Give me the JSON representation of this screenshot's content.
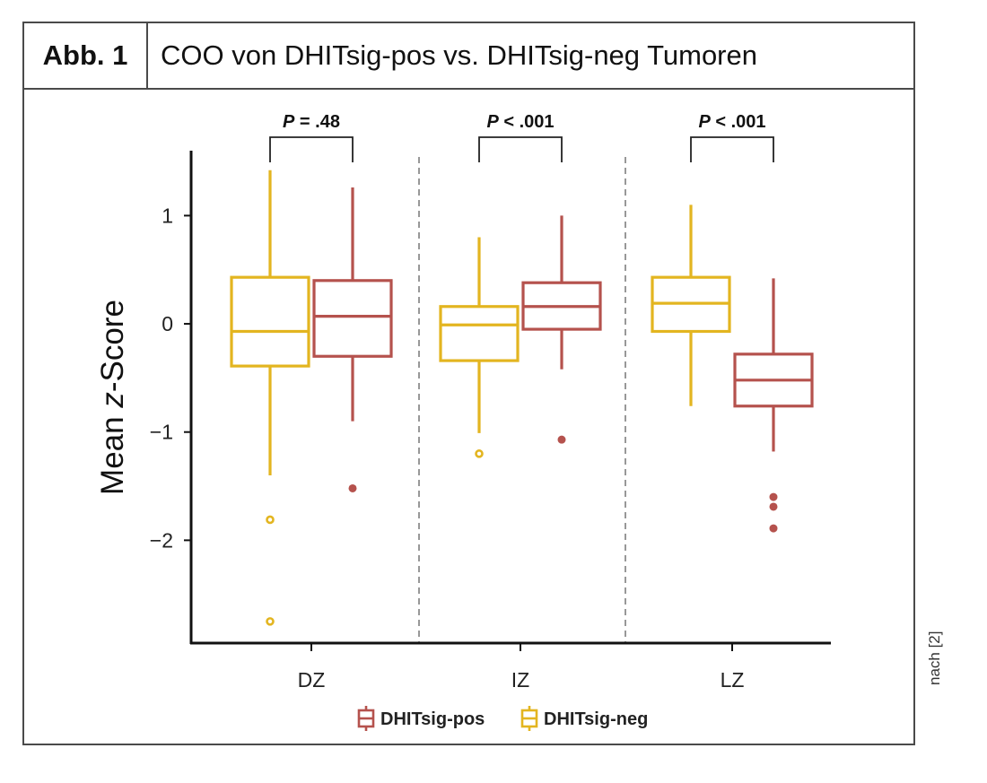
{
  "figure": {
    "label": "Abb. 1",
    "title": "COO von DHITsig-pos vs. DHITsig-neg Tumoren",
    "source": "nach [2]"
  },
  "colors": {
    "pos": "#b5524d",
    "neg": "#e3b520",
    "axis": "#111111",
    "divider": "#777777"
  },
  "chart_data": {
    "type": "boxplot",
    "title": "",
    "xlabel": "",
    "ylabel": "Mean z-Score",
    "ylim": [
      -2.95,
      1.6
    ],
    "yticks": [
      1,
      0,
      -1,
      -2
    ],
    "ytick_labels": [
      "1",
      "0",
      "−1",
      "−2"
    ],
    "categories": [
      "DZ",
      "IZ",
      "LZ"
    ],
    "legend": {
      "position": "bottom",
      "entries": [
        "DHITsig-pos",
        "DHITsig-neg"
      ]
    },
    "series": [
      {
        "name": "DHITsig-neg",
        "color_key": "neg",
        "boxes": [
          {
            "category": "DZ",
            "min": -1.4,
            "q1": -0.39,
            "median": -0.07,
            "q3": 0.43,
            "max": 1.42,
            "outliers": [
              -1.81,
              -2.75
            ]
          },
          {
            "category": "IZ",
            "min": -1.01,
            "q1": -0.34,
            "median": -0.01,
            "q3": 0.16,
            "max": 0.8,
            "outliers": [
              -1.2
            ]
          },
          {
            "category": "LZ",
            "min": -0.76,
            "q1": -0.07,
            "median": 0.19,
            "q3": 0.43,
            "max": 1.1,
            "outliers": []
          }
        ]
      },
      {
        "name": "DHITsig-pos",
        "color_key": "pos",
        "boxes": [
          {
            "category": "DZ",
            "min": -0.9,
            "q1": -0.3,
            "median": 0.07,
            "q3": 0.4,
            "max": 1.26,
            "outliers": [
              -1.52
            ]
          },
          {
            "category": "IZ",
            "min": -0.42,
            "q1": -0.05,
            "median": 0.16,
            "q3": 0.38,
            "max": 1.0,
            "outliers": [
              -1.07
            ]
          },
          {
            "category": "LZ",
            "min": -1.18,
            "q1": -0.76,
            "median": -0.52,
            "q3": -0.28,
            "max": 0.42,
            "outliers": [
              -1.6,
              -1.69,
              -1.89
            ]
          }
        ]
      }
    ],
    "annotations": [
      {
        "category": "DZ",
        "text": "P = .48"
      },
      {
        "category": "IZ",
        "text": "P < .001"
      },
      {
        "category": "LZ",
        "text": "P < .001"
      }
    ]
  }
}
